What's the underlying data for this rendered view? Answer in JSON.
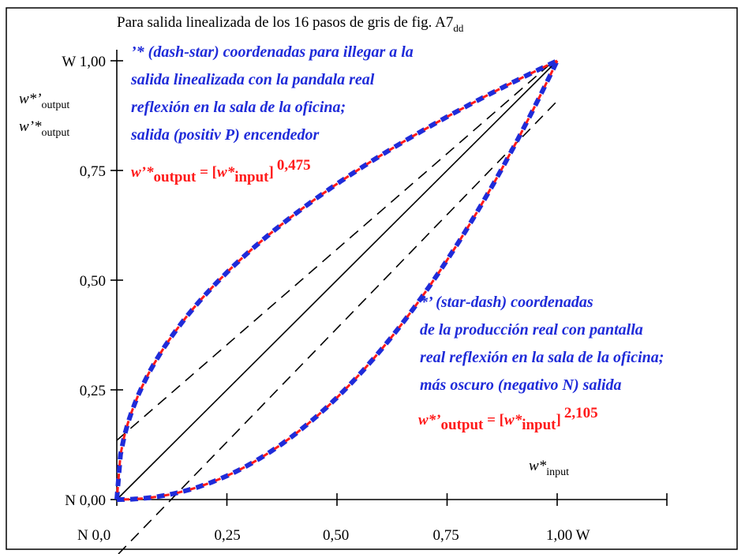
{
  "chart_data": {
    "type": "line",
    "title": "Para salida linealizada de los 16 pasos de gris de fig. A7",
    "title_sub": "dd",
    "xlim": [
      0,
      1
    ],
    "ylim": [
      0,
      1
    ],
    "x_ticks": [
      0,
      0.25,
      0.5,
      0.75,
      1.0
    ],
    "y_ticks": [
      0,
      0.25,
      0.5,
      0.75,
      1.0
    ],
    "x_tick_labels": [
      "N  0,0",
      "0,25",
      "0,50",
      "0,75",
      "1,00  W"
    ],
    "y_tick_labels": [
      "N 0,00",
      "0,25",
      "0,50",
      "0,75",
      "W 1,00"
    ],
    "ylabel_lines": [
      {
        "main": "w*’",
        "sub": "output"
      },
      {
        "main": "w’*",
        "sub": "output"
      }
    ],
    "xlabel": {
      "main": "w*",
      "sub": "input"
    },
    "series": [
      {
        "name": "w’*output",
        "exponent": 0.475,
        "style": "dashed-blue-red"
      },
      {
        "name": "w*’output",
        "exponent": 2.105,
        "style": "dashed-blue-red"
      },
      {
        "name": "identity",
        "style": "solid-black"
      },
      {
        "name": "upper-dash",
        "style": "dashed-black"
      },
      {
        "name": "lower-dash",
        "style": "dashed-black"
      }
    ],
    "annotations": {
      "upper": {
        "lines": [
          "’* (dash-star) coordenadas para illegar a la",
          "salida linealizada con la pandala real",
          "reflexión en la sala de la oficina;",
          "salida (positiv P) encendedor"
        ],
        "formula": {
          "lhs": "w’*",
          "lhs_sub": "output",
          "eq": " = [",
          "in": "w*",
          "in_sub": "input",
          "close": "]",
          "exp": "0,475"
        }
      },
      "lower": {
        "lines": [
          "*’ (star-dash) coordenadas",
          "de la producción real con pantalla",
          "real reflexión en la sala de la oficina;",
          "más oscuro (negativo N) salida"
        ],
        "formula": {
          "lhs": "w*’",
          "lhs_sub": "output",
          "eq": " = [",
          "in": "w*",
          "in_sub": "input",
          "close": "]",
          "exp": "2,105"
        }
      }
    },
    "colors": {
      "blue": "#1f2bd9",
      "red": "#ff1a1a",
      "black": "#000000"
    },
    "grid": false
  }
}
